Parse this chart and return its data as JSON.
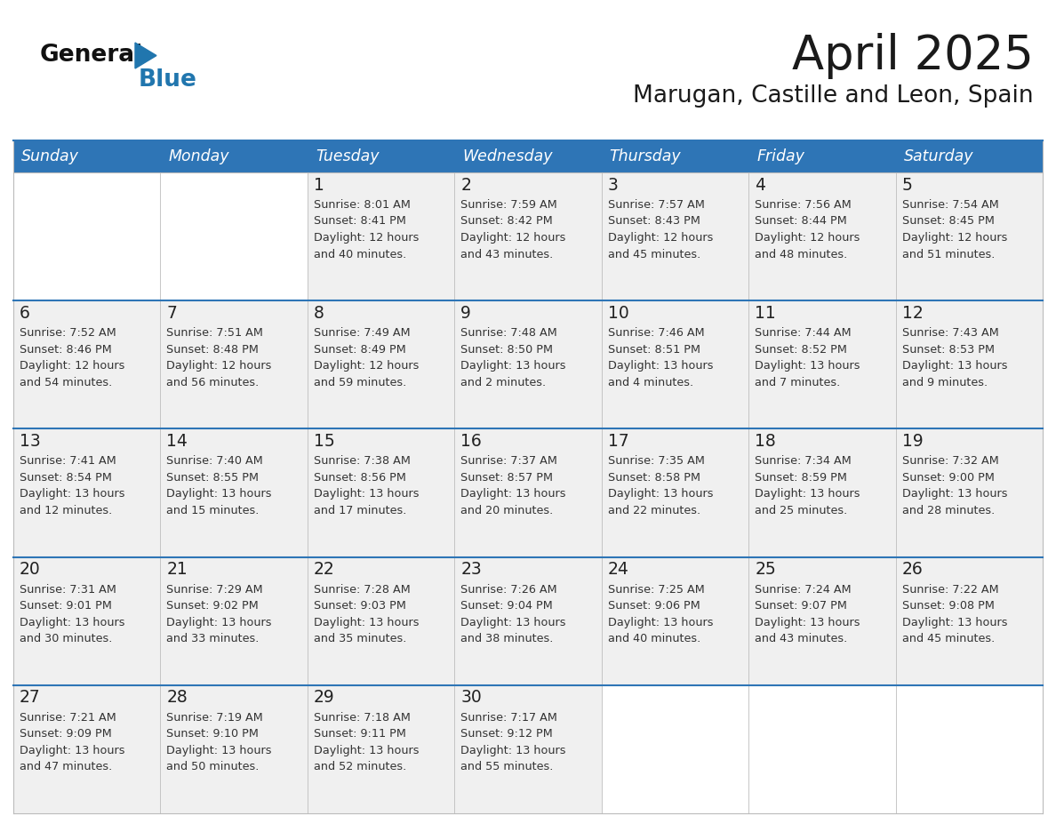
{
  "title": "April 2025",
  "subtitle": "Marugan, Castille and Leon, Spain",
  "days_of_week": [
    "Sunday",
    "Monday",
    "Tuesday",
    "Wednesday",
    "Thursday",
    "Friday",
    "Saturday"
  ],
  "header_bg": "#2E75B6",
  "header_text": "#FFFFFF",
  "cell_bg_filled": "#F0F0F0",
  "cell_bg_empty": "#FFFFFF",
  "cell_text": "#333333",
  "row_divider_color": "#2E75B6",
  "cell_border_color": "#BBBBBB",
  "title_color": "#1a1a1a",
  "subtitle_color": "#1a1a1a",
  "logo_general_color": "#111111",
  "logo_blue_color": "#2176AE",
  "logo_triangle_color": "#2176AE",
  "week_rows": [
    [
      {
        "day": null,
        "data": null
      },
      {
        "day": null,
        "data": null
      },
      {
        "day": 1,
        "data": "Sunrise: 8:01 AM\nSunset: 8:41 PM\nDaylight: 12 hours\nand 40 minutes."
      },
      {
        "day": 2,
        "data": "Sunrise: 7:59 AM\nSunset: 8:42 PM\nDaylight: 12 hours\nand 43 minutes."
      },
      {
        "day": 3,
        "data": "Sunrise: 7:57 AM\nSunset: 8:43 PM\nDaylight: 12 hours\nand 45 minutes."
      },
      {
        "day": 4,
        "data": "Sunrise: 7:56 AM\nSunset: 8:44 PM\nDaylight: 12 hours\nand 48 minutes."
      },
      {
        "day": 5,
        "data": "Sunrise: 7:54 AM\nSunset: 8:45 PM\nDaylight: 12 hours\nand 51 minutes."
      }
    ],
    [
      {
        "day": 6,
        "data": "Sunrise: 7:52 AM\nSunset: 8:46 PM\nDaylight: 12 hours\nand 54 minutes."
      },
      {
        "day": 7,
        "data": "Sunrise: 7:51 AM\nSunset: 8:48 PM\nDaylight: 12 hours\nand 56 minutes."
      },
      {
        "day": 8,
        "data": "Sunrise: 7:49 AM\nSunset: 8:49 PM\nDaylight: 12 hours\nand 59 minutes."
      },
      {
        "day": 9,
        "data": "Sunrise: 7:48 AM\nSunset: 8:50 PM\nDaylight: 13 hours\nand 2 minutes."
      },
      {
        "day": 10,
        "data": "Sunrise: 7:46 AM\nSunset: 8:51 PM\nDaylight: 13 hours\nand 4 minutes."
      },
      {
        "day": 11,
        "data": "Sunrise: 7:44 AM\nSunset: 8:52 PM\nDaylight: 13 hours\nand 7 minutes."
      },
      {
        "day": 12,
        "data": "Sunrise: 7:43 AM\nSunset: 8:53 PM\nDaylight: 13 hours\nand 9 minutes."
      }
    ],
    [
      {
        "day": 13,
        "data": "Sunrise: 7:41 AM\nSunset: 8:54 PM\nDaylight: 13 hours\nand 12 minutes."
      },
      {
        "day": 14,
        "data": "Sunrise: 7:40 AM\nSunset: 8:55 PM\nDaylight: 13 hours\nand 15 minutes."
      },
      {
        "day": 15,
        "data": "Sunrise: 7:38 AM\nSunset: 8:56 PM\nDaylight: 13 hours\nand 17 minutes."
      },
      {
        "day": 16,
        "data": "Sunrise: 7:37 AM\nSunset: 8:57 PM\nDaylight: 13 hours\nand 20 minutes."
      },
      {
        "day": 17,
        "data": "Sunrise: 7:35 AM\nSunset: 8:58 PM\nDaylight: 13 hours\nand 22 minutes."
      },
      {
        "day": 18,
        "data": "Sunrise: 7:34 AM\nSunset: 8:59 PM\nDaylight: 13 hours\nand 25 minutes."
      },
      {
        "day": 19,
        "data": "Sunrise: 7:32 AM\nSunset: 9:00 PM\nDaylight: 13 hours\nand 28 minutes."
      }
    ],
    [
      {
        "day": 20,
        "data": "Sunrise: 7:31 AM\nSunset: 9:01 PM\nDaylight: 13 hours\nand 30 minutes."
      },
      {
        "day": 21,
        "data": "Sunrise: 7:29 AM\nSunset: 9:02 PM\nDaylight: 13 hours\nand 33 minutes."
      },
      {
        "day": 22,
        "data": "Sunrise: 7:28 AM\nSunset: 9:03 PM\nDaylight: 13 hours\nand 35 minutes."
      },
      {
        "day": 23,
        "data": "Sunrise: 7:26 AM\nSunset: 9:04 PM\nDaylight: 13 hours\nand 38 minutes."
      },
      {
        "day": 24,
        "data": "Sunrise: 7:25 AM\nSunset: 9:06 PM\nDaylight: 13 hours\nand 40 minutes."
      },
      {
        "day": 25,
        "data": "Sunrise: 7:24 AM\nSunset: 9:07 PM\nDaylight: 13 hours\nand 43 minutes."
      },
      {
        "day": 26,
        "data": "Sunrise: 7:22 AM\nSunset: 9:08 PM\nDaylight: 13 hours\nand 45 minutes."
      }
    ],
    [
      {
        "day": 27,
        "data": "Sunrise: 7:21 AM\nSunset: 9:09 PM\nDaylight: 13 hours\nand 47 minutes."
      },
      {
        "day": 28,
        "data": "Sunrise: 7:19 AM\nSunset: 9:10 PM\nDaylight: 13 hours\nand 50 minutes."
      },
      {
        "day": 29,
        "data": "Sunrise: 7:18 AM\nSunset: 9:11 PM\nDaylight: 13 hours\nand 52 minutes."
      },
      {
        "day": 30,
        "data": "Sunrise: 7:17 AM\nSunset: 9:12 PM\nDaylight: 13 hours\nand 55 minutes."
      },
      {
        "day": null,
        "data": null
      },
      {
        "day": null,
        "data": null
      },
      {
        "day": null,
        "data": null
      }
    ]
  ]
}
